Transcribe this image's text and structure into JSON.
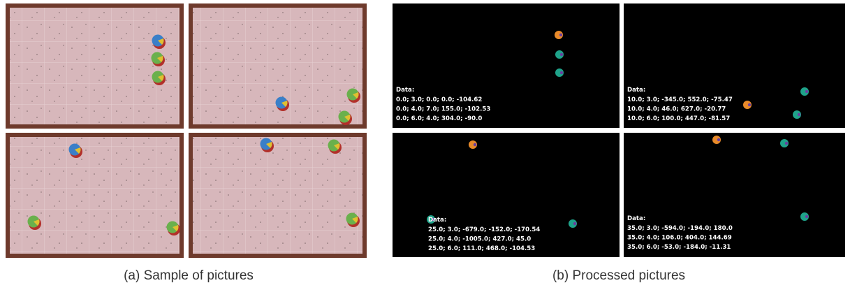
{
  "captions": {
    "a": "(a) Sample of pictures",
    "b": "(b) Processed pictures"
  },
  "processed": [
    {
      "header": "Data:",
      "lines": [
        "0.0; 3.0; 0.0; 0.0; -104.62",
        "0.0; 4.0; 7.0; 155.0; -102.53",
        "0.0; 6.0; 4.0; 304.0; -90.0"
      ]
    },
    {
      "header": "Data:",
      "lines": [
        "10.0; 3.0; -345.0; 552.0; -75.47",
        "10.0; 4.0; 46.0; 627.0; -20.77",
        "10.0; 6.0; 100.0; 447.0; -81.57"
      ]
    },
    {
      "header": "Data:",
      "lines": [
        "25.0; 3.0; -679.0; -152.0; -170.54",
        "25.0; 4.0; -1005.0; 427.0; 45.0",
        "25.0; 6.0; 111.0; 468.0; -104.53"
      ]
    },
    {
      "header": "Data:",
      "lines": [
        "35.0; 3.0; -594.0; -194.0; 180.0",
        "35.0; 4.0; 106.0; 404.0; 144.69",
        "35.0; 6.0; -53.0; -184.0; -11.31"
      ]
    }
  ]
}
